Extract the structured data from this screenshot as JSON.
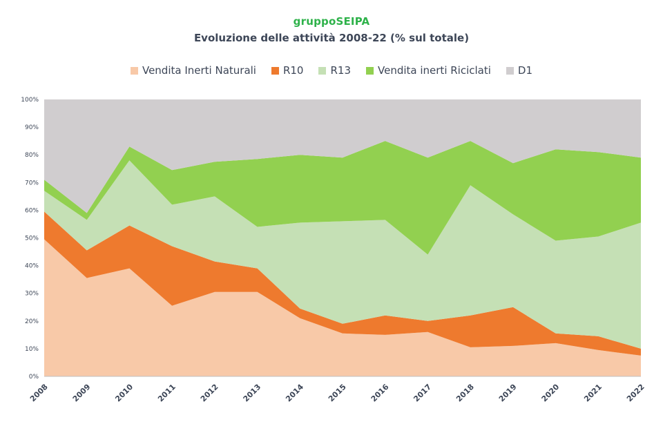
{
  "brand": "gruppoSEIPA",
  "chart_data": {
    "type": "area",
    "stacked": true,
    "title": "Evoluzione delle attività 2008-22 (% sul totale)",
    "x": [
      "2008",
      "2009",
      "2010",
      "2011",
      "2012",
      "2013",
      "2014",
      "2015",
      "2016",
      "2017",
      "2018",
      "2019",
      "2020",
      "2021",
      "2022"
    ],
    "yticks": [
      "0%",
      "10%",
      "20%",
      "30%",
      "40%",
      "50%",
      "60%",
      "70%",
      "80%",
      "90%",
      "100%"
    ],
    "ylim": [
      0,
      100
    ],
    "legend_position": "top",
    "series": [
      {
        "name": "Vendita Inerti Naturali",
        "color": "#f8c9a8",
        "values": [
          49.5,
          35.5,
          39,
          25.5,
          30.5,
          30.5,
          21,
          15.5,
          15,
          16,
          10.5,
          11,
          12,
          9.5,
          7.5
        ]
      },
      {
        "name": "R10",
        "color": "#ee7a2e",
        "values": [
          10,
          10,
          15.5,
          21.5,
          11,
          8.5,
          3.5,
          3.5,
          7,
          4,
          11.5,
          14,
          3.5,
          5,
          2.5
        ]
      },
      {
        "name": "R13",
        "color": "#c5e0b5",
        "values": [
          7.5,
          11,
          23.5,
          15,
          23.5,
          15,
          31,
          37,
          34.5,
          24,
          47,
          33.5,
          33.5,
          36,
          45.5
        ]
      },
      {
        "name": "Vendita inerti Riciclati",
        "color": "#92d050",
        "values": [
          4,
          2.5,
          5,
          12.5,
          12.5,
          24.5,
          24.5,
          23,
          28.5,
          35,
          16,
          18.5,
          33,
          30.5,
          23.5
        ]
      },
      {
        "name": "D1",
        "color": "#d0cdcf",
        "values": [
          29,
          41,
          17,
          25.5,
          22.5,
          21.5,
          20,
          21,
          15,
          21,
          15,
          23,
          18,
          19,
          21
        ]
      }
    ]
  }
}
